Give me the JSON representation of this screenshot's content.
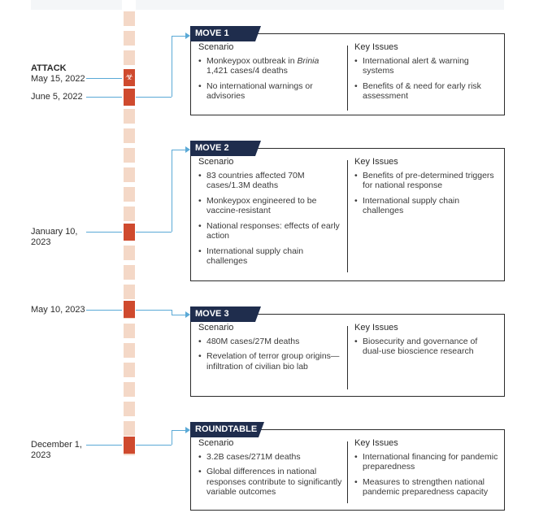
{
  "timeline": {
    "events": [
      {
        "label": "ATTACK",
        "date": "May 15, 2022"
      },
      {
        "date": "June 5, 2022"
      },
      {
        "date": "January 10, 2023"
      },
      {
        "date": "May 10, 2023"
      },
      {
        "date": "December 1, 2023"
      }
    ]
  },
  "moves": [
    {
      "tag": "MOVE 1",
      "scenario_heading": "Scenario",
      "issues_heading": "Key Issues",
      "scenario": [
        "Monkeypox outbreak in Brinia 1,421 cases/4 deaths",
        "No international warnings or advisories"
      ],
      "issues": [
        "International alert & warning systems",
        "Benefits of & need for early risk assessment"
      ]
    },
    {
      "tag": "MOVE 2",
      "scenario_heading": "Scenario",
      "issues_heading": "Key Issues",
      "scenario": [
        "83 countries affected 70M cases/1.3M deaths",
        "Monkeypox engineered to be vaccine-resistant",
        "National responses: effects of early action",
        "International supply chain challenges"
      ],
      "issues": [
        "Benefits of pre-determined triggers for national response",
        "International supply chain challenges"
      ]
    },
    {
      "tag": "MOVE 3",
      "scenario_heading": "Scenario",
      "issues_heading": "Key Issues",
      "scenario": [
        "480M cases/27M deaths",
        "Revelation of terror group origins—infiltration of civilian bio lab"
      ],
      "issues": [
        "Biosecurity and governance of dual-use bioscience research"
      ]
    },
    {
      "tag": "ROUNDTABLE",
      "scenario_heading": "Scenario",
      "issues_heading": "Key Issues",
      "scenario": [
        "3.2B cases/271M deaths",
        "Global differences in national responses contribute to significantly variable outcomes"
      ],
      "issues": [
        "International financing for pandemic preparedness",
        "Measures to strengthen national pandemic preparedness capacity"
      ]
    }
  ],
  "icons": {
    "attack_marker": "biohazard-icon",
    "accent": "#cf4a2e",
    "segment": "#f4d8c7",
    "tag_bg": "#1f2d4d",
    "connector": "#5aa9d6"
  }
}
